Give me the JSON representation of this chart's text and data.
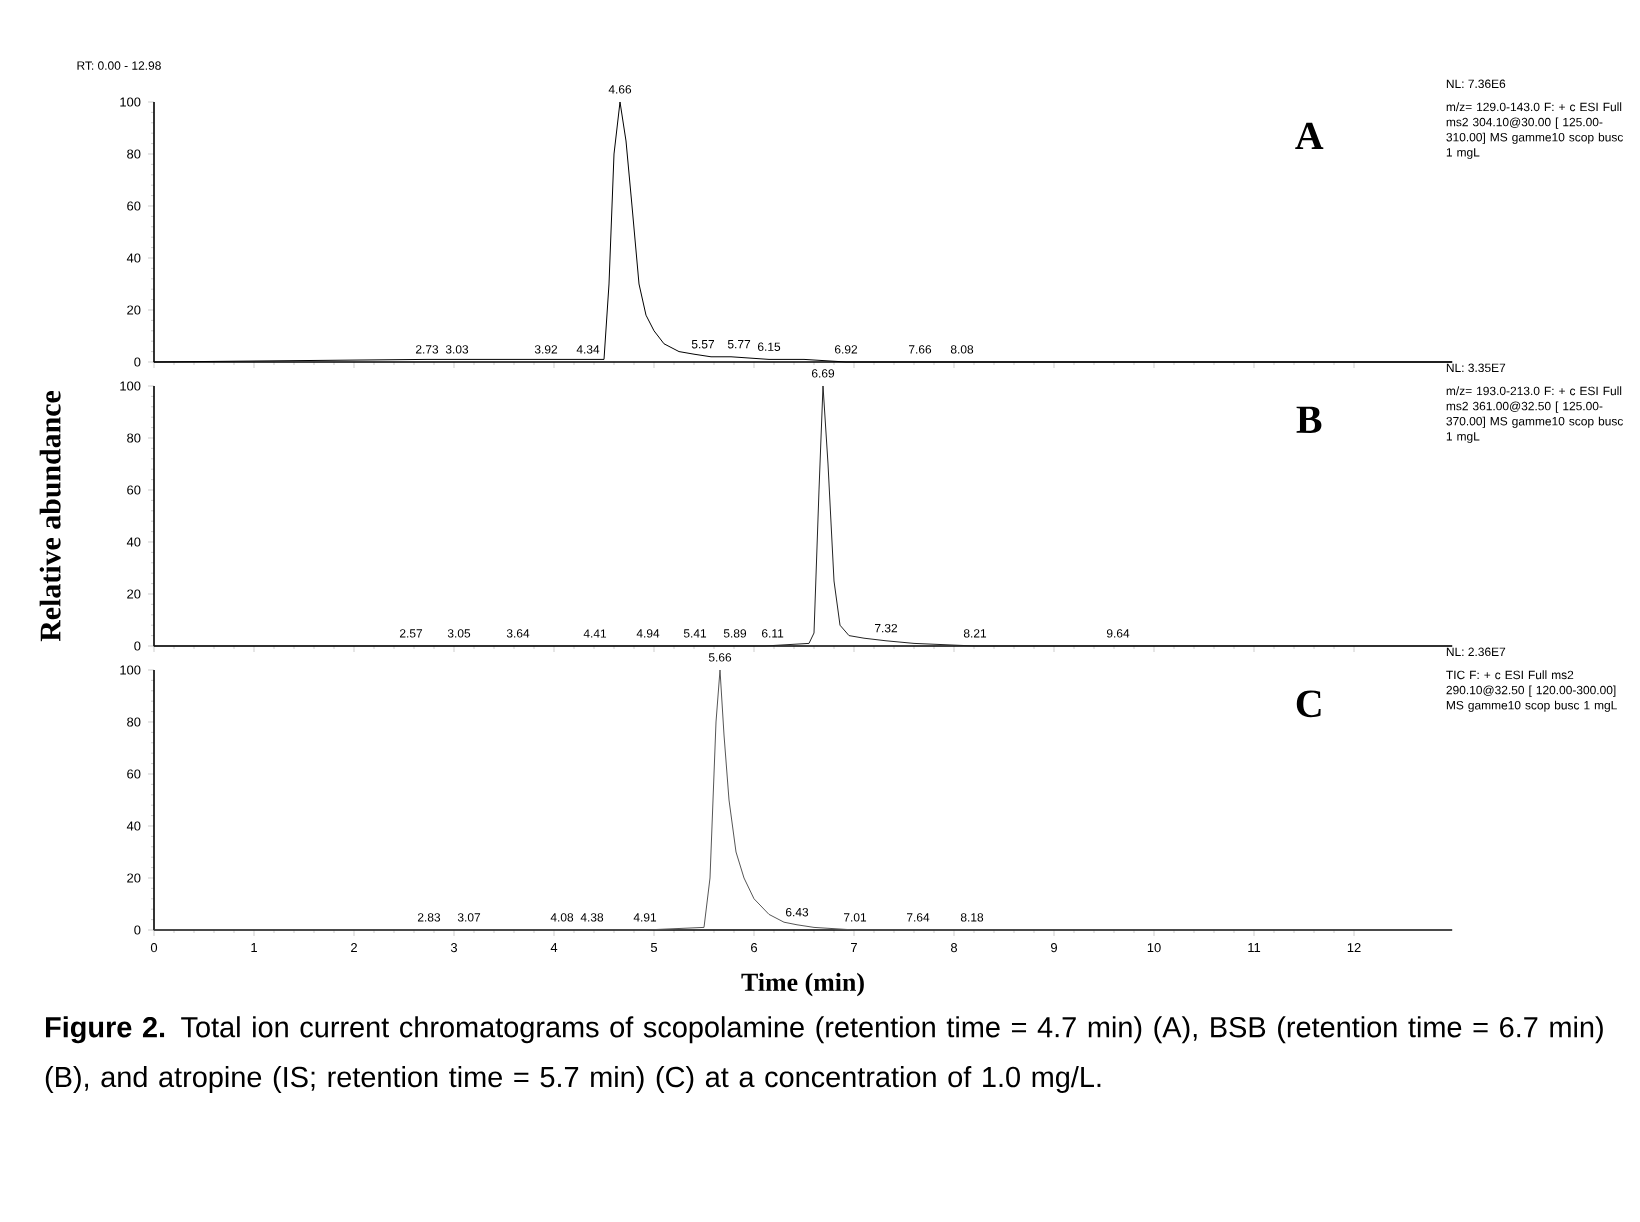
{
  "chart_data": [
    {
      "type": "line",
      "title": "A",
      "xlim": [
        0,
        12.98
      ],
      "ylim": [
        0,
        100
      ],
      "xticks": [
        0,
        1,
        2,
        3,
        4,
        5,
        6,
        7,
        8,
        9,
        10,
        11,
        12
      ],
      "yticks": [
        0,
        20,
        40,
        60,
        80,
        100
      ],
      "tick_labels": "y",
      "line_style": "solid",
      "series": [
        {
          "color": "#000000",
          "x": [
            0,
            2.73,
            3.03,
            3.92,
            4.34,
            4.5,
            4.55,
            4.6,
            4.66,
            4.72,
            4.78,
            4.85,
            4.92,
            5.0,
            5.1,
            5.25,
            5.4,
            5.57,
            5.77,
            6.15,
            6.5,
            6.92,
            7.66,
            8.08,
            12.98
          ],
          "values": [
            0,
            1,
            1,
            1,
            1,
            1,
            30,
            80,
            100,
            85,
            60,
            30,
            18,
            12,
            7,
            4,
            3,
            2,
            2,
            1,
            1,
            0,
            0,
            0,
            0
          ]
        }
      ],
      "annotations": [
        "RT: 0.00 - 12.98",
        "NL: 7.36E6",
        "m/z= 129.0-143.0 F: + c ESI Full ms2 304.10@30.00 [ 125.00-310.00] MS gamme10 scop busc 1 mgL",
        {
          "text": "4.66",
          "x": 4.66,
          "y": 100
        },
        {
          "text": "2.73",
          "x": 2.73,
          "y": 0
        },
        {
          "text": "3.03",
          "x": 3.03,
          "y": 0
        },
        {
          "text": "3.92",
          "x": 3.92,
          "y": 0
        },
        {
          "text": "4.34",
          "x": 4.34,
          "y": 0
        },
        {
          "text": "5.57",
          "x": 5.57,
          "y": 2
        },
        {
          "text": "5.77",
          "x": 5.77,
          "y": 2
        },
        {
          "text": "6.15",
          "x": 6.15,
          "y": 1
        },
        {
          "text": "6.92",
          "x": 6.92,
          "y": 0
        },
        {
          "text": "7.66",
          "x": 7.66,
          "y": 0
        },
        {
          "text": "8.08",
          "x": 8.08,
          "y": 0
        }
      ]
    },
    {
      "type": "line",
      "title": "B",
      "ylabel": "Relative abundance",
      "xlim": [
        0,
        12.98
      ],
      "ylim": [
        0,
        100
      ],
      "xticks": [
        0,
        1,
        2,
        3,
        4,
        5,
        6,
        7,
        8,
        9,
        10,
        11,
        12
      ],
      "yticks": [
        0,
        20,
        40,
        60,
        80,
        100
      ],
      "tick_labels": "y",
      "line_style": "solid",
      "series": [
        {
          "color": "#222222",
          "x": [
            0,
            2.57,
            3.05,
            3.64,
            4.41,
            4.94,
            5.41,
            5.89,
            6.11,
            6.55,
            6.6,
            6.65,
            6.69,
            6.74,
            6.8,
            6.86,
            6.95,
            7.1,
            7.32,
            7.6,
            8.21,
            9.64,
            12.98
          ],
          "values": [
            0,
            0,
            0,
            0,
            0,
            0,
            0,
            0,
            0,
            1,
            5,
            60,
            100,
            70,
            25,
            8,
            4,
            3,
            2,
            1,
            0,
            0,
            0
          ]
        }
      ],
      "annotations": [
        "NL: 3.35E7",
        "m/z= 193.0-213.0 F: + c ESI Full ms2 361.00@32.50 [ 125.00-370.00] MS gamme10 scop busc 1 mgL",
        {
          "text": "6.69",
          "x": 6.69,
          "y": 100
        },
        {
          "text": "2.57",
          "x": 2.57,
          "y": 0
        },
        {
          "text": "3.05",
          "x": 3.05,
          "y": 0
        },
        {
          "text": "3.64",
          "x": 3.64,
          "y": 0
        },
        {
          "text": "4.41",
          "x": 4.41,
          "y": 0
        },
        {
          "text": "4.94",
          "x": 4.94,
          "y": 0
        },
        {
          "text": "5.41",
          "x": 5.41,
          "y": 0
        },
        {
          "text": "5.89",
          "x": 5.89,
          "y": 0
        },
        {
          "text": "6.11",
          "x": 6.11,
          "y": 0
        },
        {
          "text": "7.32",
          "x": 7.32,
          "y": 2
        },
        {
          "text": "8.21",
          "x": 8.21,
          "y": 0
        },
        {
          "text": "9.64",
          "x": 9.64,
          "y": 0
        }
      ]
    },
    {
      "type": "line",
      "title": "C",
      "xlabel": "Time (min)",
      "xlim": [
        0,
        12.98
      ],
      "ylim": [
        0,
        100
      ],
      "xticks": [
        0,
        1,
        2,
        3,
        4,
        5,
        6,
        7,
        8,
        9,
        10,
        11,
        12
      ],
      "yticks": [
        0,
        20,
        40,
        60,
        80,
        100
      ],
      "line_style": "solid",
      "series": [
        {
          "color": "#555555",
          "x": [
            0,
            2.83,
            3.07,
            4.08,
            4.38,
            4.91,
            5.5,
            5.56,
            5.62,
            5.66,
            5.7,
            5.75,
            5.82,
            5.9,
            6.0,
            6.15,
            6.3,
            6.43,
            6.6,
            7.01,
            7.64,
            8.18,
            12.98
          ],
          "values": [
            0,
            0,
            0,
            0,
            0,
            0,
            1,
            20,
            80,
            100,
            75,
            50,
            30,
            20,
            12,
            6,
            3,
            2,
            1,
            0,
            0,
            0,
            0
          ]
        }
      ],
      "annotations": [
        "NL: 2.36E7",
        "TIC F: + c ESI Full ms2 290.10@32.50 [ 120.00-300.00] MS gamme10 scop busc 1 mgL",
        "**Figure 2.** Total ion current chromatograms of scopolamine (retention time = 4.7 min) (A), BSB (retention time = 6.7 min) (B), and atropine (IS; retention time = 5.7 min) (C) at a concentration of 1.0 mg/L.",
        {
          "text": "5.66",
          "x": 5.66,
          "y": 100
        },
        {
          "text": "2.83",
          "x": 2.83,
          "y": 0
        },
        {
          "text": "3.07",
          "x": 3.07,
          "y": 0
        },
        {
          "text": "4.08",
          "x": 4.08,
          "y": 0
        },
        {
          "text": "4.38",
          "x": 4.38,
          "y": 0
        },
        {
          "text": "4.91",
          "x": 4.91,
          "y": 0
        },
        {
          "text": "6.43",
          "x": 6.43,
          "y": 2
        },
        {
          "text": "7.01",
          "x": 7.01,
          "y": 0
        },
        {
          "text": "7.64",
          "x": 7.64,
          "y": 0
        },
        {
          "text": "8.18",
          "x": 8.18,
          "y": 0
        }
      ]
    }
  ]
}
